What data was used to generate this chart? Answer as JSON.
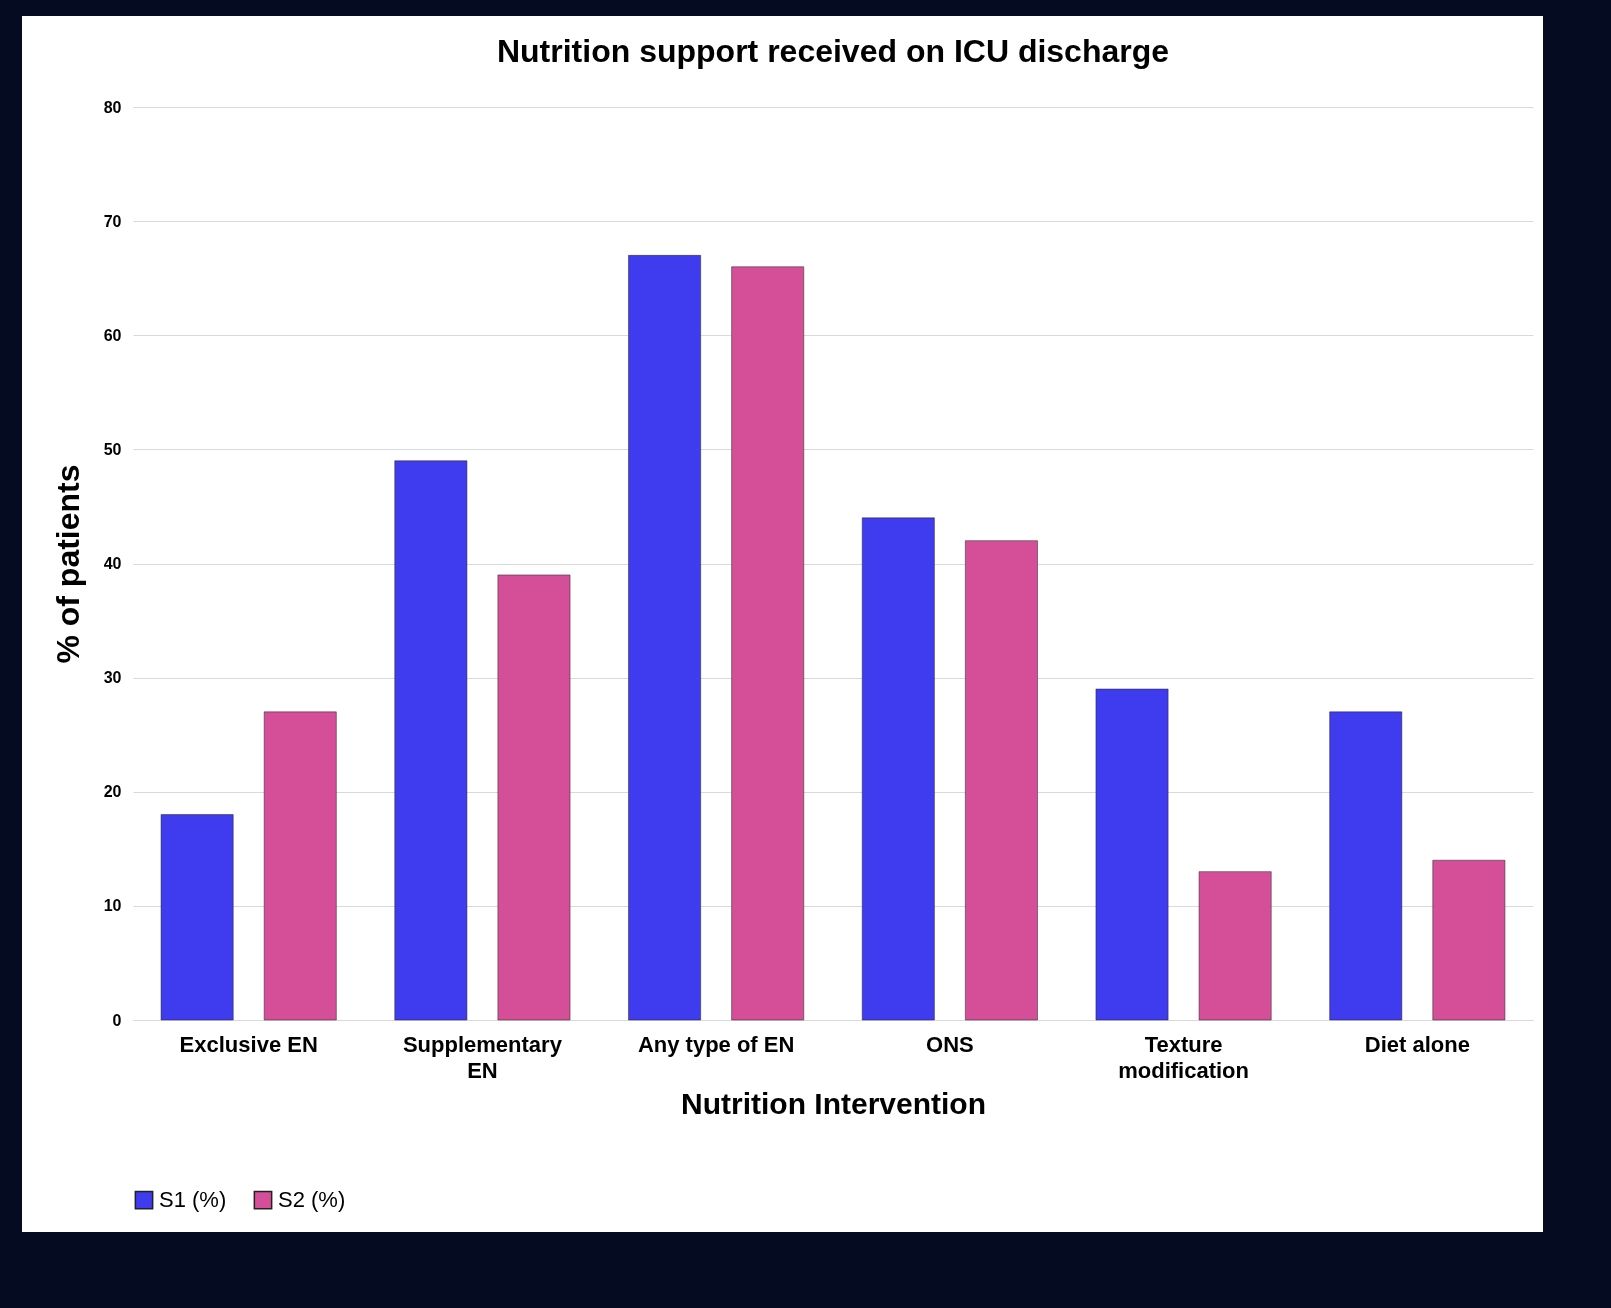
{
  "chart_data": {
    "type": "bar",
    "title": "Nutrition support received on ICU discharge",
    "xlabel": "Nutrition Intervention",
    "ylabel": "% of patients",
    "categories": [
      "Exclusive EN",
      "Supplementary EN",
      "Any type of EN",
      "ONS",
      "Texture modification",
      "Diet alone"
    ],
    "series": [
      {
        "name": "S1 (%)",
        "color": "#3f3bef",
        "values": [
          18,
          49,
          67,
          44,
          29,
          27
        ]
      },
      {
        "name": "S2 (%)",
        "color": "#d44f98",
        "values": [
          27,
          39,
          66,
          42,
          13,
          14
        ]
      }
    ],
    "ylim": [
      0,
      80
    ],
    "yticks": [
      0,
      10,
      20,
      30,
      40,
      50,
      60,
      70,
      80
    ],
    "grid": "y",
    "legend": "bottom"
  }
}
